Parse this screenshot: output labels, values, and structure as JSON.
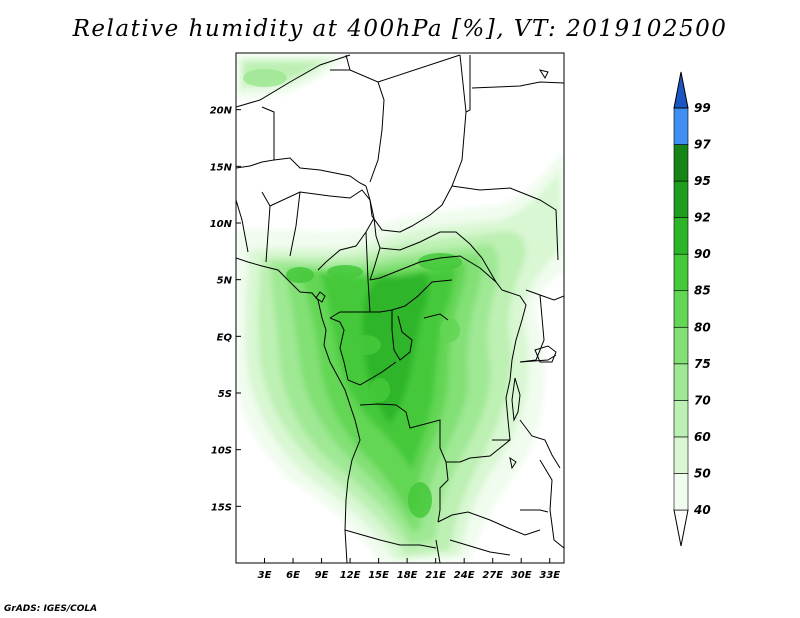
{
  "title": "Relative humidity at 400hPa [%], VT: 2019102500",
  "credit": "GrADS: IGES/COLA",
  "map": {
    "lon_range": [
      0,
      34.5
    ],
    "lat_range": [
      -20,
      25
    ],
    "lat_ticks": [
      {
        "value": 20,
        "label": "20N"
      },
      {
        "value": 15,
        "label": "15N"
      },
      {
        "value": 10,
        "label": "10N"
      },
      {
        "value": 5,
        "label": "5N"
      },
      {
        "value": 0,
        "label": "EQ"
      },
      {
        "value": -5,
        "label": "5S"
      },
      {
        "value": -10,
        "label": "10S"
      },
      {
        "value": -15,
        "label": "15S"
      }
    ],
    "lon_ticks": [
      {
        "value": 3,
        "label": "3E"
      },
      {
        "value": 6,
        "label": "6E"
      },
      {
        "value": 9,
        "label": "9E"
      },
      {
        "value": 12,
        "label": "12E"
      },
      {
        "value": 15,
        "label": "15E"
      },
      {
        "value": 18,
        "label": "18E"
      },
      {
        "value": 21,
        "label": "21E"
      },
      {
        "value": 24,
        "label": "24E"
      },
      {
        "value": 27,
        "label": "27E"
      },
      {
        "value": 30,
        "label": "30E"
      },
      {
        "value": 33,
        "label": "33E"
      }
    ]
  },
  "colorbar": {
    "levels": [
      {
        "label": "40",
        "color": "#f0fcee"
      },
      {
        "label": "50",
        "color": "#d9f7d3"
      },
      {
        "label": "60",
        "color": "#bdf0b3"
      },
      {
        "label": "70",
        "color": "#9fe894"
      },
      {
        "label": "75",
        "color": "#82e074"
      },
      {
        "label": "80",
        "color": "#63d655"
      },
      {
        "label": "85",
        "color": "#45c93b"
      },
      {
        "label": "90",
        "color": "#2db52a"
      },
      {
        "label": "92",
        "color": "#1e9d1e"
      },
      {
        "label": "95",
        "color": "#168516"
      },
      {
        "label": "97",
        "color": "#3f8ff0"
      },
      {
        "label": "99",
        "color": "#2670e0"
      }
    ],
    "bottom_color": "#ffffff",
    "top_color": "#1b56c4"
  }
}
